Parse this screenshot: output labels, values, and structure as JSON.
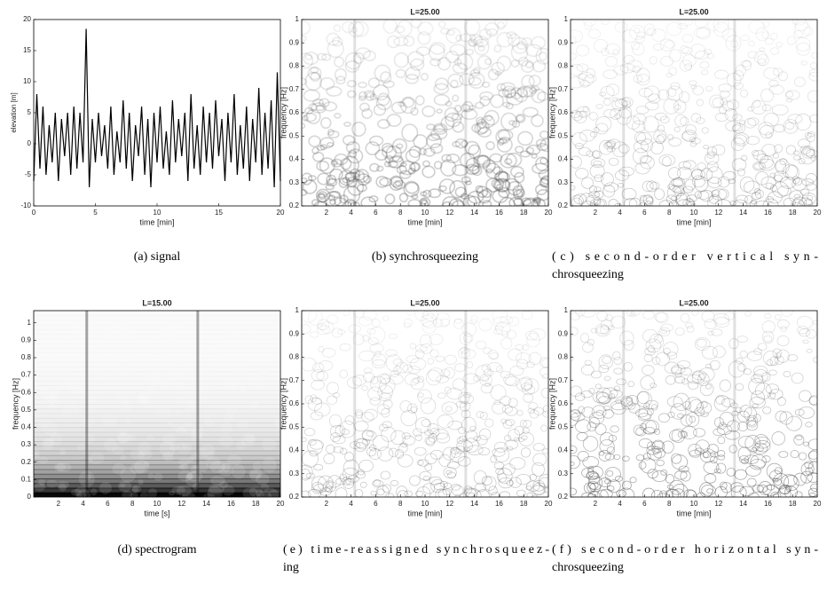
{
  "chart_data": [
    {
      "type": "line",
      "xlabel": "time [min]",
      "ylabel": "elevation [m]",
      "color": "#000000",
      "xlim": [
        0,
        20
      ],
      "xticks": [
        0,
        5,
        10,
        15,
        20
      ],
      "ylim": [
        -10,
        20
      ],
      "yticks": [
        -10,
        -5,
        0,
        5,
        10,
        15,
        20
      ],
      "x": [
        0,
        0.25,
        0.5,
        0.75,
        1,
        1.25,
        1.5,
        1.75,
        2,
        2.25,
        2.5,
        2.75,
        3,
        3.25,
        3.5,
        3.75,
        4,
        4.25,
        4.5,
        4.75,
        5,
        5.25,
        5.5,
        5.75,
        6,
        6.25,
        6.5,
        6.75,
        7,
        7.25,
        7.5,
        7.75,
        8,
        8.25,
        8.5,
        8.75,
        9,
        9.25,
        9.5,
        9.75,
        10,
        10.25,
        10.5,
        10.75,
        11,
        11.25,
        11.5,
        11.75,
        12,
        12.25,
        12.5,
        12.75,
        13,
        13.25,
        13.5,
        13.75,
        14,
        14.25,
        14.5,
        14.75,
        15,
        15.25,
        15.5,
        15.75,
        16,
        16.25,
        16.5,
        16.75,
        17,
        17.25,
        17.5,
        17.75,
        18,
        18.25,
        18.5,
        18.75,
        19,
        19.25,
        19.5,
        19.75,
        20
      ],
      "y": [
        -6,
        8,
        -4,
        6,
        -5,
        3,
        -3,
        5,
        -6,
        4,
        -2,
        5,
        -5,
        6,
        -4,
        5,
        -3,
        18.5,
        -7,
        4,
        -3,
        5,
        -2,
        3,
        -4,
        6,
        -5,
        2,
        -3,
        7,
        -4,
        5,
        -6,
        3,
        -2,
        6,
        -5,
        4,
        -7,
        5,
        -3,
        6,
        -4,
        2,
        -5,
        7,
        -3,
        4,
        -2,
        5,
        -6,
        8,
        -4,
        3,
        -5,
        6,
        -3,
        5,
        -4,
        7,
        -2,
        4,
        -6,
        5,
        -3,
        8,
        -5,
        3,
        -4,
        6,
        -6,
        4,
        -3,
        9,
        -5,
        5,
        -4,
        7,
        -7,
        11.5,
        -6
      ],
      "caption": [
        "(a) signal"
      ]
    },
    {
      "type": "spectrogram",
      "title": "L=25.00",
      "xlabel": "time [min]",
      "ylabel": "frequency [Hz]",
      "xlim": [
        0,
        20
      ],
      "xticks": [
        2,
        4,
        6,
        8,
        10,
        12,
        14,
        16,
        18,
        20
      ],
      "ylim": [
        0.2,
        1
      ],
      "yticks": [
        0.2,
        0.3,
        0.4,
        0.5,
        0.6,
        0.7,
        0.8,
        0.9,
        1
      ],
      "caption": [
        "(b) synchrosqueezing"
      ]
    },
    {
      "type": "spectrogram",
      "title": "L=25.00",
      "xlabel": "time [min]",
      "ylabel": "frequency [Hz]",
      "xlim": [
        0,
        20
      ],
      "xticks": [
        2,
        4,
        6,
        8,
        10,
        12,
        14,
        16,
        18,
        20
      ],
      "ylim": [
        0.2,
        1
      ],
      "yticks": [
        0.2,
        0.3,
        0.4,
        0.5,
        0.6,
        0.7,
        0.8,
        0.9,
        1
      ],
      "caption": [
        "(c) second-order vertical syn-",
        "chrosqueezing"
      ]
    },
    {
      "type": "spectrogram",
      "title": "L=15.00",
      "xlabel": "time [s]",
      "ylabel": "frequency [Hz]",
      "xlim": [
        0,
        20
      ],
      "xticks": [
        2,
        4,
        6,
        8,
        10,
        12,
        14,
        16,
        18,
        20
      ],
      "ylim": [
        0,
        1.07
      ],
      "yticks": [
        0,
        0.1,
        0.2,
        0.3,
        0.4,
        0.5,
        0.6,
        0.7,
        0.8,
        0.9,
        1
      ],
      "caption": [
        "(d) spectrogram"
      ]
    },
    {
      "type": "spectrogram",
      "title": "L=25.00",
      "xlabel": "time [min]",
      "ylabel": "frequency [Hz]",
      "xlim": [
        0,
        20
      ],
      "xticks": [
        2,
        4,
        6,
        8,
        10,
        12,
        14,
        16,
        18,
        20
      ],
      "ylim": [
        0.2,
        1
      ],
      "yticks": [
        0.2,
        0.3,
        0.4,
        0.5,
        0.6,
        0.7,
        0.8,
        0.9,
        1
      ],
      "caption": [
        "(e) time-reassigned synchrosqueez-",
        "ing"
      ]
    },
    {
      "type": "spectrogram",
      "title": "L=25.00",
      "xlabel": "time [min]",
      "ylabel": "frequency [Hz]",
      "xlim": [
        0,
        20
      ],
      "xticks": [
        2,
        4,
        6,
        8,
        10,
        12,
        14,
        16,
        18,
        20
      ],
      "ylim": [
        0.2,
        1
      ],
      "yticks": [
        0.2,
        0.3,
        0.4,
        0.5,
        0.6,
        0.7,
        0.8,
        0.9,
        1
      ],
      "caption": [
        "(f) second-order horizontal syn-",
        "chrosqueezing"
      ]
    }
  ]
}
